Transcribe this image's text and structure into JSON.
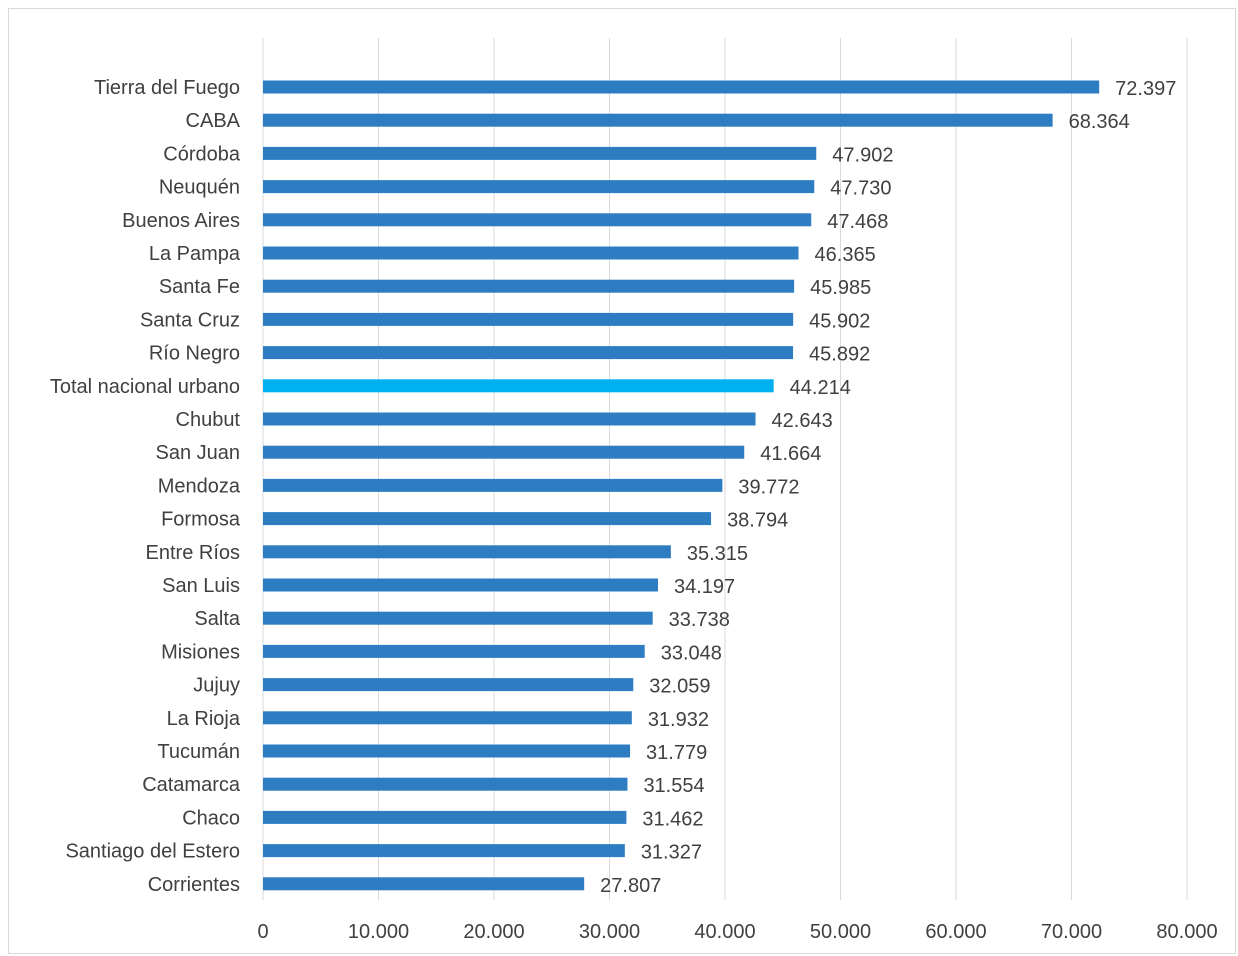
{
  "chart_data": {
    "type": "bar",
    "orientation": "horizontal",
    "title": "",
    "xlabel": "",
    "ylabel": "",
    "xlim": [
      0,
      80000
    ],
    "x_ticks": [
      0,
      10000,
      20000,
      30000,
      40000,
      50000,
      60000,
      70000,
      80000
    ],
    "x_tick_labels": [
      "0",
      "10.000",
      "20.000",
      "30.000",
      "40.000",
      "50.000",
      "60.000",
      "70.000",
      "80.000"
    ],
    "grid": "vertical",
    "legend": "none",
    "colors": {
      "bar": "#2e7dc2",
      "highlight": "#00b0f0",
      "grid": "#d9d9d9",
      "text": "#404040"
    },
    "highlight_category": "Total nacional urbano",
    "categories": [
      "Tierra del Fuego",
      "CABA",
      "Córdoba",
      "Neuquén",
      "Buenos Aires",
      "La Pampa",
      "Santa Fe",
      "Santa Cruz",
      "Río Negro",
      "Total nacional urbano",
      "Chubut",
      "San Juan",
      "Mendoza",
      "Formosa",
      "Entre Ríos",
      "San Luis",
      "Salta",
      "Misiones",
      "Jujuy",
      "La Rioja",
      "Tucumán",
      "Catamarca",
      "Chaco",
      "Santiago del Estero",
      "Corrientes"
    ],
    "values": [
      72397,
      68364,
      47902,
      47730,
      47468,
      46365,
      45985,
      45902,
      45892,
      44214,
      42643,
      41664,
      39772,
      38794,
      35315,
      34197,
      33738,
      33048,
      32059,
      31932,
      31779,
      31554,
      31462,
      31327,
      27807
    ],
    "data_labels": [
      "72.397",
      "68.364",
      "47.902",
      "47.730",
      "47.468",
      "46.365",
      "45.985",
      "45.902",
      "45.892",
      "44.214",
      "42.643",
      "41.664",
      "39.772",
      "38.794",
      "35.315",
      "34.197",
      "33.738",
      "33.048",
      "32.059",
      "31.932",
      "31.779",
      "31.554",
      "31.462",
      "31.327",
      "27.807"
    ]
  }
}
